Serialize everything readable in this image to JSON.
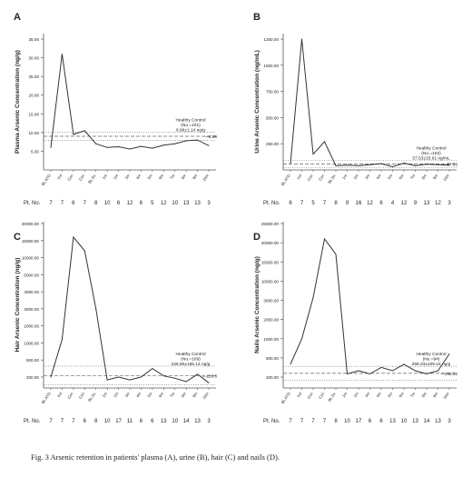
{
  "caption": "Fig. 3    Arsenic retention in patients' plasma (A), urine (B), hair (C) and nails (D).",
  "colors": {
    "line": "#333333",
    "axis": "#555555",
    "healthy_line": "#666666",
    "text": "#222222"
  },
  "chart_data": [
    {
      "panel": "A",
      "type": "line",
      "ylabel": "Plasma Arsenic Concentration (ng/g)",
      "ylim": [
        0,
        35
      ],
      "yticks": [
        "5.00",
        "10.00",
        "15.00",
        "20.00",
        "25.00",
        "30.00",
        "35.00"
      ],
      "ytick_values": [
        5,
        10,
        15,
        20,
        25,
        30,
        35
      ],
      "x": [
        "BL ATO",
        "Ind",
        "Con",
        "Con",
        "BL Dx",
        "1m",
        "2m",
        "3m",
        "4m",
        "5m",
        "6m",
        "7m",
        "8m",
        "9m",
        "10m"
      ],
      "values": [
        6.0,
        31.0,
        9.5,
        10.5,
        7.0,
        6.0,
        6.2,
        5.6,
        6.3,
        5.8,
        6.6,
        7.0,
        7.8,
        8.0,
        6.5
      ],
      "pt_label": "Pt. No.",
      "pt_numbers": [
        "7",
        "7",
        "6",
        "7",
        "8",
        "10",
        "6",
        "12",
        "6",
        "5",
        "12",
        "10",
        "13",
        "13",
        "3"
      ],
      "healthy": {
        "label": "Healthy Control",
        "n": "(No.=101)",
        "value_text": "8.99±1.14 ng/g",
        "end_label": "8.99",
        "mean": 8.99,
        "sd": 1.14
      }
    },
    {
      "panel": "B",
      "type": "line",
      "ylabel": "Urine Arsenic Concentration (ng/mL)",
      "ylim": [
        0,
        1250
      ],
      "yticks": [
        "250.00",
        "500.00",
        "750.00",
        "1000.00",
        "1250.00"
      ],
      "ytick_values": [
        250,
        500,
        750,
        1000,
        1250
      ],
      "x": [
        "BL ATO",
        "Ind",
        "Con",
        "Con",
        "BL Dx",
        "1m",
        "2m",
        "3m",
        "4m",
        "5m",
        "6m",
        "7m",
        "8m",
        "9m",
        "10m"
      ],
      "values": [
        60,
        1250,
        150,
        270,
        40,
        45,
        40,
        50,
        60,
        30,
        65,
        40,
        55,
        50,
        45
      ],
      "pt_label": "Pt. No.",
      "pt_numbers": [
        "6",
        "7",
        "5",
        "7",
        "8",
        "9",
        "16",
        "12",
        "6",
        "4",
        "12",
        "9",
        "13",
        "12",
        "3"
      ],
      "healthy": {
        "label": "Healthy Control",
        "n": "(No.=102)",
        "value_text": "57.53±33.61 ng/mL",
        "end_label": "57.53",
        "mean": 57.53,
        "sd": 33.61
      }
    },
    {
      "panel": "C",
      "type": "line",
      "ylabel": "Hair Arsenic Concentration (ng/g)",
      "yticks": [
        "200.00",
        "500.00",
        "1000.00",
        "2000.00",
        "3000.00",
        "4000.00",
        "5000.00",
        "10000.00",
        "15000.00",
        "20000.00"
      ],
      "ytick_values": [
        200,
        500,
        1000,
        2000,
        3000,
        4000,
        5000,
        10000,
        15000,
        20000
      ],
      "x": [
        "BL ATO",
        "Ind",
        "Con",
        "Con",
        "BL Dx",
        "1m",
        "2m",
        "3m",
        "4m",
        "5m",
        "6m",
        "7m",
        "8m",
        "9m",
        "10m"
      ],
      "values": [
        200,
        1200,
        16000,
        12000,
        3000,
        150,
        200,
        150,
        200,
        350,
        220,
        180,
        120,
        250,
        100
      ],
      "pt_label": "Pt. No.",
      "pt_numbers": [
        "7",
        "7",
        "7",
        "6",
        "8",
        "10",
        "17",
        "11",
        "6",
        "6",
        "13",
        "10",
        "14",
        "13",
        "3"
      ],
      "healthy": {
        "label": "Healthy Control",
        "n": "(No.=109)",
        "value_text": "226.80±165.14 ng/g",
        "end_label": "226.8",
        "mean": 226.8,
        "sd": 165.14
      }
    },
    {
      "panel": "D",
      "type": "line",
      "ylabel": "Nails Arsenic Concentration (ng/g)",
      "yticks": [
        "200.00",
        "500.00",
        "1000.00",
        "2000.00",
        "3000.00",
        "10000.00",
        "15000.00",
        "20000.00",
        "25000.00"
      ],
      "ytick_values": [
        200,
        500,
        1000,
        2000,
        3000,
        10000,
        15000,
        20000,
        25000
      ],
      "x": [
        "BL ATO",
        "Ind",
        "Con",
        "Con",
        "BL Dx",
        "1m",
        "2m",
        "3m",
        "4m",
        "5m",
        "6m",
        "7m",
        "8m",
        "9m",
        "10m"
      ],
      "values": [
        400,
        1000,
        4000,
        21000,
        17000,
        250,
        300,
        250,
        350,
        300,
        400,
        300,
        250,
        300,
        600
      ],
      "pt_label": "Pt. No.",
      "pt_numbers": [
        "7",
        "7",
        "7",
        "7",
        "8",
        "10",
        "17",
        "6",
        "6",
        "13",
        "10",
        "13",
        "14",
        "13",
        "3"
      ],
      "healthy": {
        "label": "Healthy Control",
        "n": "(No.=94)",
        "value_text": "258.23±109.24 ng/g",
        "end_label": "258.23",
        "mean": 258.23,
        "sd": 109.24
      }
    }
  ]
}
